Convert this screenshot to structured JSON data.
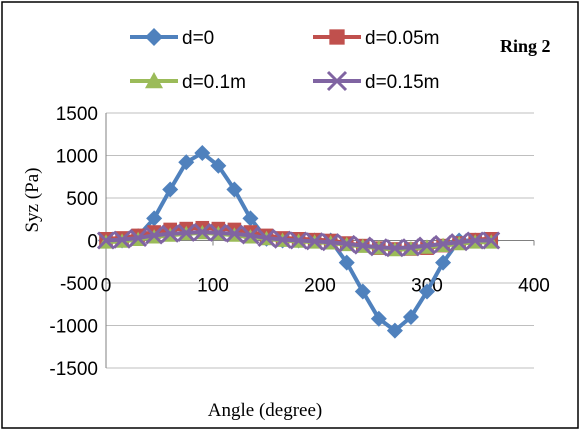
{
  "chart_data": {
    "type": "line",
    "title": "",
    "annotation": "Ring 2",
    "xlabel": "Angle (degree)",
    "ylabel": "Syz (Pa)",
    "xlim": [
      0,
      400
    ],
    "ylim": [
      -1500,
      1500
    ],
    "xticks": [
      "0",
      "100",
      "200",
      "300",
      "400"
    ],
    "yticks": [
      "1500",
      "1000",
      "500",
      "0",
      "-500",
      "-1000",
      "-1500"
    ],
    "grid": "horizontal",
    "legend_position": "top",
    "x": [
      0,
      15,
      30,
      45,
      60,
      75,
      90,
      105,
      120,
      135,
      150,
      165,
      180,
      195,
      210,
      225,
      240,
      255,
      270,
      285,
      300,
      315,
      330,
      345,
      360
    ],
    "series": [
      {
        "name": "d=0",
        "color": "#4f81bd",
        "marker": "diamond",
        "values": [
          0,
          0,
          50,
          260,
          600,
          920,
          1030,
          880,
          600,
          260,
          20,
          0,
          0,
          0,
          0,
          -260,
          -600,
          -920,
          -1060,
          -900,
          -600,
          -260,
          0,
          0,
          0
        ]
      },
      {
        "name": "d=0.05m",
        "color": "#c0504d",
        "marker": "square",
        "values": [
          20,
          30,
          60,
          100,
          130,
          140,
          150,
          140,
          130,
          100,
          60,
          30,
          20,
          10,
          0,
          -30,
          -60,
          -90,
          -100,
          -100,
          -90,
          -60,
          -30,
          10,
          20
        ]
      },
      {
        "name": "d=0.1m",
        "color": "#9bbb59",
        "marker": "triangle",
        "values": [
          -20,
          -10,
          10,
          40,
          60,
          80,
          90,
          80,
          60,
          40,
          20,
          0,
          -10,
          -20,
          -30,
          -50,
          -70,
          -90,
          -110,
          -100,
          -80,
          -60,
          -40,
          -20,
          -20
        ]
      },
      {
        "name": "d=0.15m",
        "color": "#8064a2",
        "marker": "x",
        "values": [
          0,
          10,
          30,
          60,
          80,
          90,
          100,
          90,
          80,
          60,
          30,
          10,
          0,
          -10,
          -20,
          -40,
          -60,
          -80,
          -90,
          -80,
          -60,
          -40,
          -20,
          0,
          0
        ]
      }
    ]
  }
}
